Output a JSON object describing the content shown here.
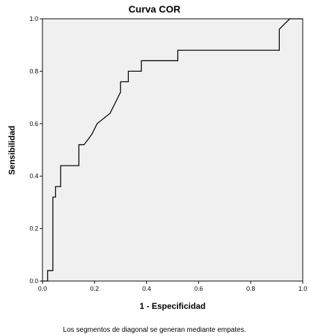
{
  "chart_data": {
    "type": "line",
    "title": "Curva COR",
    "xlabel": "1 - Especificidad",
    "ylabel": "Sensibilidad",
    "footnote": "Los segmentos de diagonal se generan mediante empates.",
    "xlim": [
      0.0,
      1.0
    ],
    "ylim": [
      0.0,
      1.0
    ],
    "x_ticks": [
      "0.0",
      "0.2",
      "0.4",
      "0.6",
      "0.8",
      "1.0"
    ],
    "y_ticks": [
      "0.0",
      "0.2",
      "0.4",
      "0.6",
      "0.8",
      "1.0"
    ],
    "grid": false,
    "plot_background": "#f0f0f0",
    "line_color": "#000000",
    "series": [
      {
        "x": [
          0.0,
          0.0,
          0.02,
          0.02,
          0.04,
          0.04,
          0.05,
          0.05,
          0.07,
          0.07,
          0.14,
          0.14,
          0.16,
          0.19,
          0.19,
          0.21,
          0.21,
          0.26,
          0.26,
          0.28,
          0.28,
          0.3,
          0.3,
          0.33,
          0.33,
          0.38,
          0.38,
          0.52,
          0.52,
          0.91,
          0.91,
          0.95,
          1.0
        ],
        "y": [
          0.0,
          0.0,
          0.0,
          0.04,
          0.04,
          0.32,
          0.32,
          0.36,
          0.36,
          0.44,
          0.44,
          0.52,
          0.52,
          0.56,
          0.56,
          0.6,
          0.6,
          0.64,
          0.64,
          0.68,
          0.68,
          0.72,
          0.76,
          0.76,
          0.8,
          0.8,
          0.84,
          0.84,
          0.88,
          0.88,
          0.96,
          1.0,
          1.0
        ]
      }
    ]
  }
}
